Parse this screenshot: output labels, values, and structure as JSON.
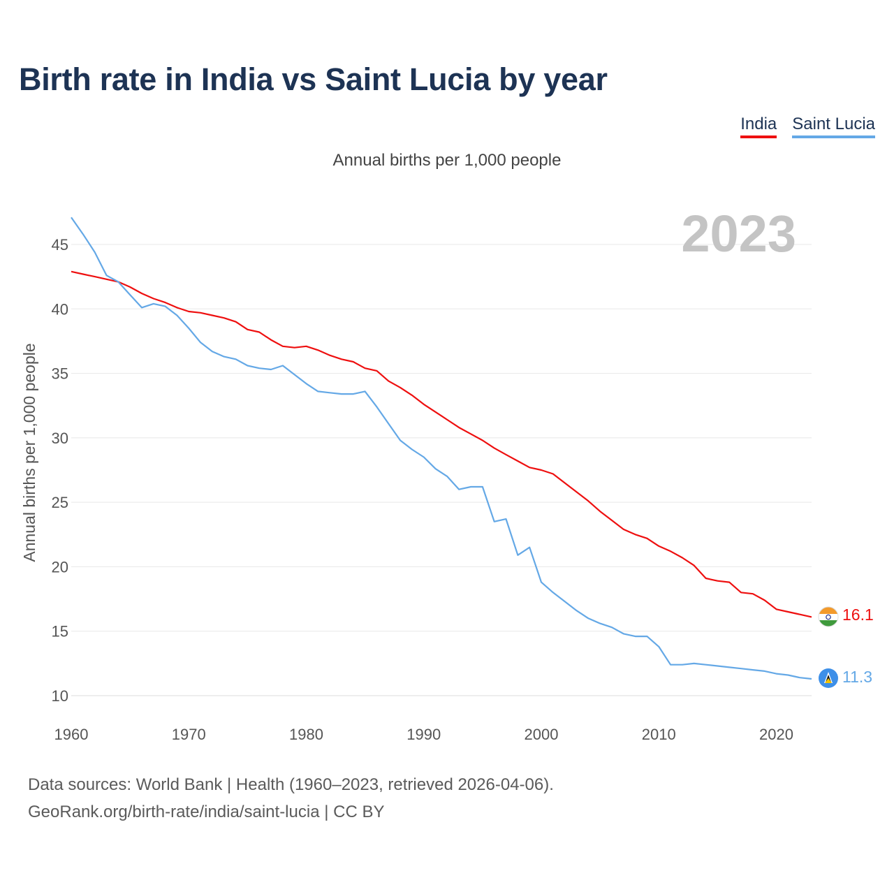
{
  "title": "Birth rate in India vs Saint Lucia by year",
  "subtitle": "Annual births per 1,000 people",
  "year_label": "2023",
  "footer": {
    "line1": "Data sources: World Bank | Health (1960–2023, retrieved 2026-04-06).",
    "line2": "GeoRank.org/birth-rate/india/saint-lucia | CC BY"
  },
  "legend": [
    {
      "name": "India",
      "color": "#ee0f0f"
    },
    {
      "name": "Saint Lucia",
      "color": "#64a8e6"
    }
  ],
  "chart_data": {
    "type": "line",
    "title": "Birth rate in India vs Saint Lucia by year",
    "subtitle": "Annual births per 1,000 people",
    "xlabel": "",
    "ylabel": "Annual births per 1,000 people",
    "xlim": [
      1960,
      2023
    ],
    "ylim": [
      10,
      47
    ],
    "xticks": [
      1960,
      1970,
      1980,
      1990,
      2000,
      2010,
      2020
    ],
    "yticks": [
      10,
      15,
      20,
      25,
      30,
      35,
      40,
      45
    ],
    "grid": true,
    "x": [
      1960,
      1961,
      1962,
      1963,
      1964,
      1965,
      1966,
      1967,
      1968,
      1969,
      1970,
      1971,
      1972,
      1973,
      1974,
      1975,
      1976,
      1977,
      1978,
      1979,
      1980,
      1981,
      1982,
      1983,
      1984,
      1985,
      1986,
      1987,
      1988,
      1989,
      1990,
      1991,
      1992,
      1993,
      1994,
      1995,
      1996,
      1997,
      1998,
      1999,
      2000,
      2001,
      2002,
      2003,
      2004,
      2005,
      2006,
      2007,
      2008,
      2009,
      2010,
      2011,
      2012,
      2013,
      2014,
      2015,
      2016,
      2017,
      2018,
      2019,
      2020,
      2021,
      2022,
      2023
    ],
    "series": [
      {
        "name": "India",
        "color": "#ee0f0f",
        "end_label": "16.1",
        "values": [
          42.9,
          42.7,
          42.5,
          42.3,
          42.1,
          41.7,
          41.2,
          40.8,
          40.5,
          40.1,
          39.8,
          39.7,
          39.5,
          39.3,
          39.0,
          38.4,
          38.2,
          37.6,
          37.1,
          37.0,
          37.1,
          36.8,
          36.4,
          36.1,
          35.9,
          35.4,
          35.2,
          34.4,
          33.9,
          33.3,
          32.6,
          32.0,
          31.4,
          30.8,
          30.3,
          29.8,
          29.2,
          28.7,
          28.2,
          27.7,
          27.5,
          27.2,
          26.5,
          25.8,
          25.1,
          24.3,
          23.6,
          22.9,
          22.5,
          22.2,
          21.6,
          21.2,
          20.7,
          20.1,
          19.1,
          18.9,
          18.8,
          18.0,
          17.9,
          17.4,
          16.7,
          16.5,
          16.3,
          16.1
        ]
      },
      {
        "name": "Saint Lucia",
        "color": "#64a8e6",
        "end_label": "11.3",
        "values": [
          47.1,
          45.8,
          44.4,
          42.6,
          42.1,
          41.1,
          40.1,
          40.4,
          40.2,
          39.5,
          38.5,
          37.4,
          36.7,
          36.3,
          36.1,
          35.6,
          35.4,
          35.3,
          35.6,
          34.9,
          34.2,
          33.6,
          33.5,
          33.4,
          33.4,
          33.6,
          32.4,
          31.1,
          29.8,
          29.1,
          28.5,
          27.6,
          27.0,
          26.0,
          26.2,
          26.2,
          23.5,
          23.7,
          20.9,
          21.5,
          18.8,
          18.0,
          17.3,
          16.6,
          16.0,
          15.6,
          15.3,
          14.8,
          14.6,
          14.6,
          13.8,
          12.4,
          12.4,
          12.5,
          12.4,
          12.3,
          12.2,
          12.1,
          12.0,
          11.9,
          11.7,
          11.6,
          11.4,
          11.3
        ]
      }
    ]
  }
}
